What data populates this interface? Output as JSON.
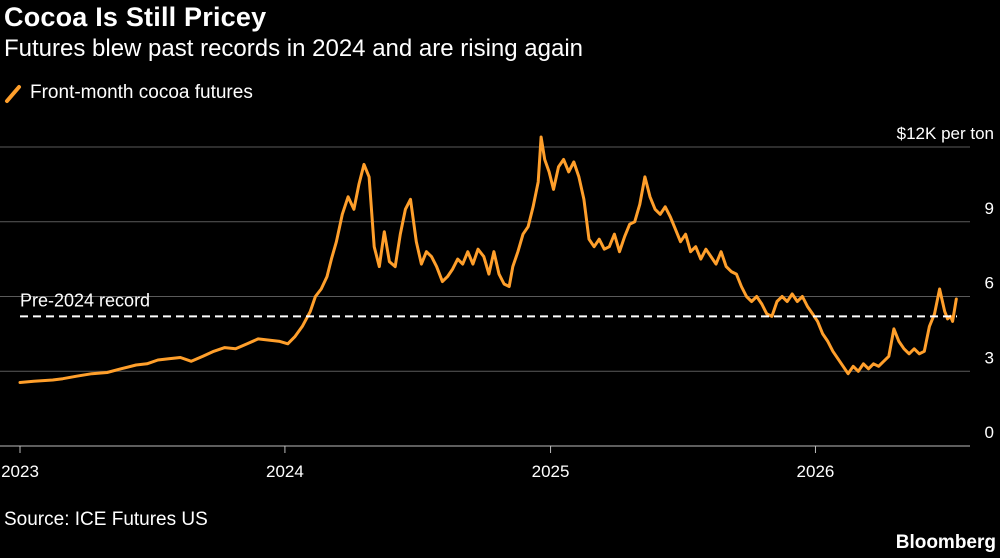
{
  "header": {
    "title": "Cocoa Is Still Pricey",
    "subtitle": "Futures blew past records in 2024 and are rising again"
  },
  "legend": {
    "label": "Front-month cocoa futures"
  },
  "footer": {
    "source": "Source: ICE Futures US",
    "brand": "Bloomberg"
  },
  "colors": {
    "series": "#ff9f2b",
    "grid": "#5a5a5a",
    "background": "#000000",
    "reference": "#ffffff"
  },
  "chart_data": {
    "type": "line",
    "y_unit_label": "$12K per ton",
    "ylim": [
      0,
      12
    ],
    "yticks": [
      {
        "value": 0,
        "label": "0"
      },
      {
        "value": 3,
        "label": "3"
      },
      {
        "value": 6,
        "label": "6"
      },
      {
        "value": 9,
        "label": "9"
      },
      {
        "value": 12,
        "label": "$12K per ton"
      }
    ],
    "xlim": [
      "2023-01-01",
      "2026-07-15"
    ],
    "xticks": [
      {
        "value": "2023-01-01",
        "label": "2023"
      },
      {
        "value": "2024-01-01",
        "label": "2024"
      },
      {
        "value": "2025-01-01",
        "label": "2025"
      },
      {
        "value": "2026-01-01",
        "label": "2026"
      }
    ],
    "grid": true,
    "legend_position": "top-left",
    "reference_line": {
      "value": 5.2,
      "label": "Pre-2024 record",
      "style": "dashed"
    },
    "series": [
      {
        "name": "Front-month cocoa futures",
        "points": [
          [
            "2023-01-01",
            2.55
          ],
          [
            "2023-01-20",
            2.6
          ],
          [
            "2023-02-15",
            2.65
          ],
          [
            "2023-03-01",
            2.7
          ],
          [
            "2023-03-20",
            2.8
          ],
          [
            "2023-04-10",
            2.9
          ],
          [
            "2023-05-01",
            2.95
          ],
          [
            "2023-05-20",
            3.1
          ],
          [
            "2023-06-10",
            3.25
          ],
          [
            "2023-06-25",
            3.3
          ],
          [
            "2023-07-10",
            3.45
          ],
          [
            "2023-07-25",
            3.5
          ],
          [
            "2023-08-10",
            3.55
          ],
          [
            "2023-08-25",
            3.4
          ],
          [
            "2023-09-10",
            3.6
          ],
          [
            "2023-09-25",
            3.8
          ],
          [
            "2023-10-10",
            3.95
          ],
          [
            "2023-10-25",
            3.9
          ],
          [
            "2023-11-10",
            4.1
          ],
          [
            "2023-11-25",
            4.3
          ],
          [
            "2023-12-10",
            4.25
          ],
          [
            "2023-12-25",
            4.2
          ],
          [
            "2024-01-05",
            4.1
          ],
          [
            "2024-01-15",
            4.4
          ],
          [
            "2024-01-25",
            4.8
          ],
          [
            "2024-02-05",
            5.4
          ],
          [
            "2024-02-12",
            6.0
          ],
          [
            "2024-02-20",
            6.3
          ],
          [
            "2024-02-28",
            6.8
          ],
          [
            "2024-03-05",
            7.5
          ],
          [
            "2024-03-12",
            8.2
          ],
          [
            "2024-03-20",
            9.3
          ],
          [
            "2024-03-28",
            10.0
          ],
          [
            "2024-04-05",
            9.5
          ],
          [
            "2024-04-12",
            10.5
          ],
          [
            "2024-04-19",
            11.3
          ],
          [
            "2024-04-26",
            10.8
          ],
          [
            "2024-05-03",
            8.0
          ],
          [
            "2024-05-10",
            7.2
          ],
          [
            "2024-05-17",
            8.6
          ],
          [
            "2024-05-24",
            7.4
          ],
          [
            "2024-06-01",
            7.2
          ],
          [
            "2024-06-08",
            8.5
          ],
          [
            "2024-06-15",
            9.5
          ],
          [
            "2024-06-22",
            9.9
          ],
          [
            "2024-06-30",
            8.2
          ],
          [
            "2024-07-07",
            7.3
          ],
          [
            "2024-07-14",
            7.8
          ],
          [
            "2024-07-21",
            7.6
          ],
          [
            "2024-07-28",
            7.2
          ],
          [
            "2024-08-05",
            6.6
          ],
          [
            "2024-08-12",
            6.8
          ],
          [
            "2024-08-19",
            7.1
          ],
          [
            "2024-08-26",
            7.5
          ],
          [
            "2024-09-02",
            7.3
          ],
          [
            "2024-09-09",
            7.8
          ],
          [
            "2024-09-16",
            7.3
          ],
          [
            "2024-09-23",
            7.9
          ],
          [
            "2024-10-01",
            7.6
          ],
          [
            "2024-10-08",
            6.9
          ],
          [
            "2024-10-15",
            7.8
          ],
          [
            "2024-10-22",
            6.9
          ],
          [
            "2024-10-29",
            6.5
          ],
          [
            "2024-11-05",
            6.4
          ],
          [
            "2024-11-10",
            7.2
          ],
          [
            "2024-11-17",
            7.8
          ],
          [
            "2024-11-24",
            8.5
          ],
          [
            "2024-12-01",
            8.8
          ],
          [
            "2024-12-08",
            9.6
          ],
          [
            "2024-12-15",
            10.6
          ],
          [
            "2024-12-19",
            12.4
          ],
          [
            "2024-12-24",
            11.5
          ],
          [
            "2024-12-30",
            11.0
          ],
          [
            "2025-01-05",
            10.3
          ],
          [
            "2025-01-12",
            11.2
          ],
          [
            "2025-01-19",
            11.5
          ],
          [
            "2025-01-26",
            11.0
          ],
          [
            "2025-02-02",
            11.4
          ],
          [
            "2025-02-09",
            10.8
          ],
          [
            "2025-02-16",
            9.9
          ],
          [
            "2025-02-23",
            8.3
          ],
          [
            "2025-03-02",
            8.0
          ],
          [
            "2025-03-09",
            8.3
          ],
          [
            "2025-03-16",
            7.9
          ],
          [
            "2025-03-23",
            8.0
          ],
          [
            "2025-03-30",
            8.5
          ],
          [
            "2025-04-06",
            7.8
          ],
          [
            "2025-04-13",
            8.4
          ],
          [
            "2025-04-20",
            8.9
          ],
          [
            "2025-04-27",
            9.0
          ],
          [
            "2025-05-04",
            9.7
          ],
          [
            "2025-05-11",
            10.8
          ],
          [
            "2025-05-18",
            10.0
          ],
          [
            "2025-05-25",
            9.5
          ],
          [
            "2025-06-01",
            9.3
          ],
          [
            "2025-06-08",
            9.6
          ],
          [
            "2025-06-15",
            9.2
          ],
          [
            "2025-06-22",
            8.7
          ],
          [
            "2025-06-29",
            8.2
          ],
          [
            "2025-07-06",
            8.5
          ],
          [
            "2025-07-13",
            7.8
          ],
          [
            "2025-07-20",
            8.0
          ],
          [
            "2025-07-27",
            7.5
          ],
          [
            "2025-08-03",
            7.9
          ],
          [
            "2025-08-10",
            7.6
          ],
          [
            "2025-08-17",
            7.3
          ],
          [
            "2025-08-24",
            7.8
          ],
          [
            "2025-08-31",
            7.2
          ],
          [
            "2025-09-07",
            7.0
          ],
          [
            "2025-09-14",
            6.9
          ],
          [
            "2025-09-21",
            6.4
          ],
          [
            "2025-09-28",
            6.0
          ],
          [
            "2025-10-05",
            5.8
          ],
          [
            "2025-10-12",
            6.0
          ],
          [
            "2025-10-19",
            5.7
          ],
          [
            "2025-10-26",
            5.3
          ],
          [
            "2025-11-02",
            5.2
          ],
          [
            "2025-11-09",
            5.8
          ],
          [
            "2025-11-16",
            6.0
          ],
          [
            "2025-11-23",
            5.8
          ],
          [
            "2025-11-30",
            6.1
          ],
          [
            "2025-12-07",
            5.8
          ],
          [
            "2025-12-14",
            6.0
          ],
          [
            "2025-12-21",
            5.6
          ],
          [
            "2025-12-28",
            5.3
          ],
          [
            "2026-01-04",
            5.0
          ],
          [
            "2026-01-11",
            4.5
          ],
          [
            "2026-01-18",
            4.2
          ],
          [
            "2026-01-25",
            3.8
          ],
          [
            "2026-02-01",
            3.5
          ],
          [
            "2026-02-08",
            3.2
          ],
          [
            "2026-02-15",
            2.9
          ],
          [
            "2026-02-22",
            3.2
          ],
          [
            "2026-03-01",
            3.0
          ],
          [
            "2026-03-08",
            3.3
          ],
          [
            "2026-03-15",
            3.1
          ],
          [
            "2026-03-22",
            3.3
          ],
          [
            "2026-03-29",
            3.2
          ],
          [
            "2026-04-05",
            3.4
          ],
          [
            "2026-04-12",
            3.6
          ],
          [
            "2026-04-19",
            4.7
          ],
          [
            "2026-04-26",
            4.2
          ],
          [
            "2026-05-03",
            3.9
          ],
          [
            "2026-05-10",
            3.7
          ],
          [
            "2026-05-17",
            3.9
          ],
          [
            "2026-05-24",
            3.7
          ],
          [
            "2026-05-31",
            3.8
          ],
          [
            "2026-06-07",
            4.8
          ],
          [
            "2026-06-14",
            5.3
          ],
          [
            "2026-06-21",
            6.3
          ],
          [
            "2026-06-28",
            5.4
          ],
          [
            "2026-07-02",
            5.1
          ],
          [
            "2026-07-06",
            5.2
          ],
          [
            "2026-07-09",
            5.0
          ],
          [
            "2026-07-14",
            5.9
          ]
        ]
      }
    ]
  }
}
